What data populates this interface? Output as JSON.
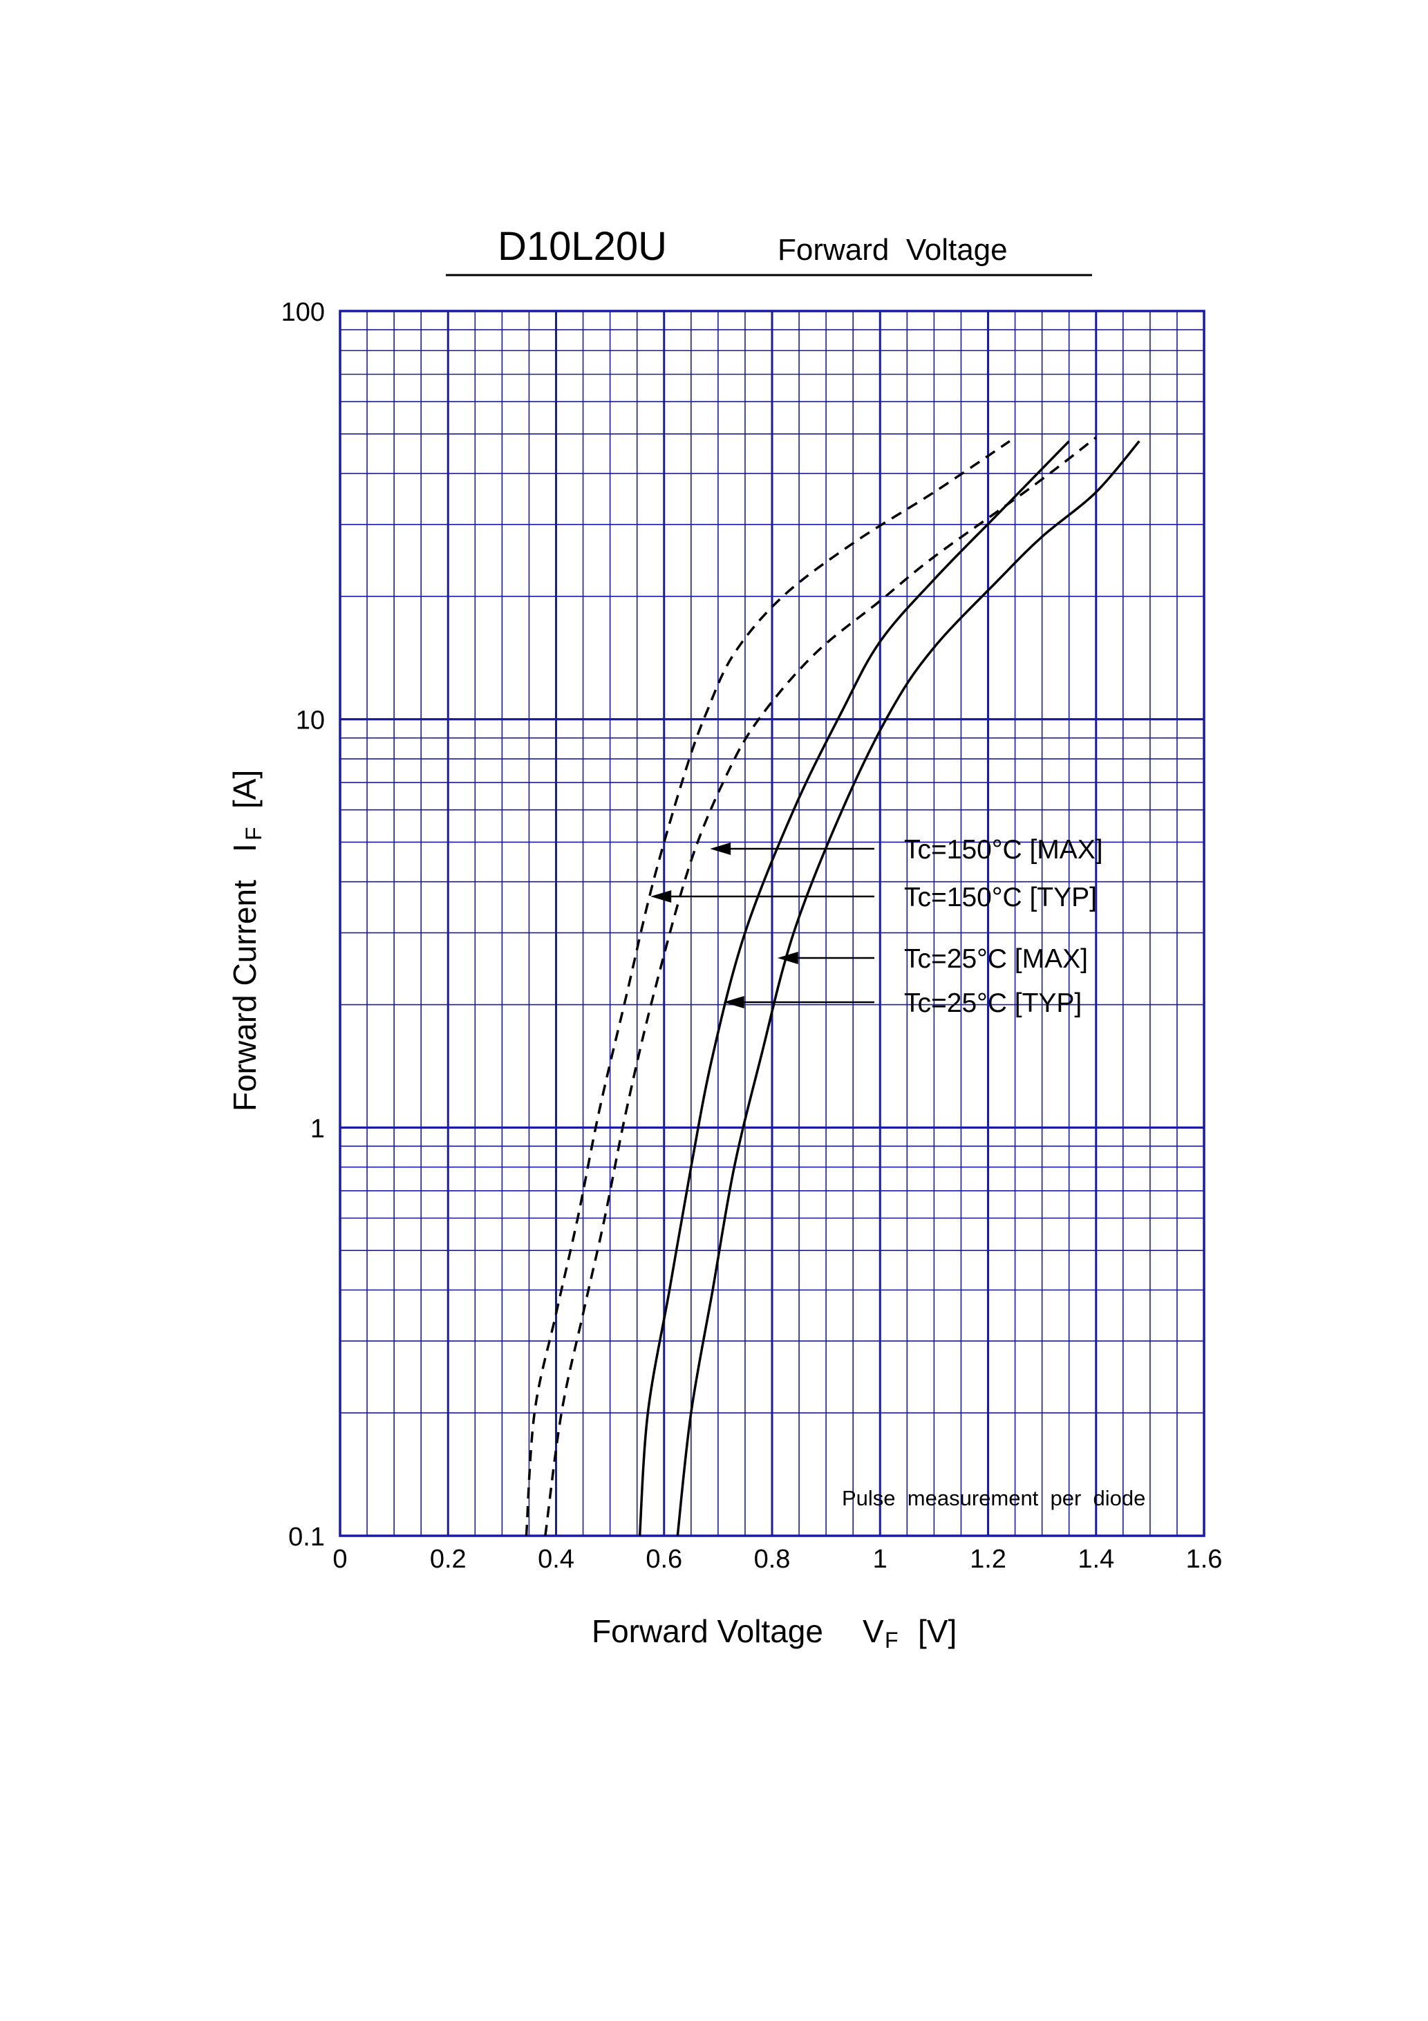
{
  "header": {
    "part_number": "D10L20U",
    "subtitle": "Forward  Voltage"
  },
  "chart_data": {
    "type": "line",
    "title": "D10L20U",
    "subtitle": "Forward  Voltage",
    "xlabel": {
      "main": "Forward Voltage",
      "symbol": "V",
      "subscript": "F",
      "unit": "[V]"
    },
    "ylabel": {
      "main": "Forward Current",
      "symbol": "I",
      "subscript": "F",
      "unit": "[A]"
    },
    "xlim": [
      0,
      1.6
    ],
    "ylim": [
      0.1,
      100
    ],
    "y_scale": "log",
    "grid": true,
    "x_ticks": [
      "0",
      "0.2",
      "0.4",
      "0.6",
      "0.8",
      "1",
      "1.2",
      "1.4",
      "1.6"
    ],
    "y_ticks": [
      "0.1",
      "1",
      "10",
      "100"
    ],
    "note": "Pulse  measurement  per  diode",
    "series": [
      {
        "name": "Tc=150°C [TYP]",
        "style": "dashed",
        "points": [
          [
            0.345,
            0.1
          ],
          [
            0.36,
            0.2
          ],
          [
            0.4,
            0.35
          ],
          [
            0.44,
            0.6
          ],
          [
            0.48,
            1.1
          ],
          [
            0.53,
            2.1
          ],
          [
            0.58,
            4.0
          ],
          [
            0.64,
            7.5
          ],
          [
            0.68,
            10.5
          ],
          [
            0.73,
            14.5
          ],
          [
            0.82,
            20
          ],
          [
            0.95,
            27
          ],
          [
            1.1,
            36
          ],
          [
            1.24,
            48
          ]
        ]
      },
      {
        "name": "Tc=150°C [MAX]",
        "style": "dashed",
        "points": [
          [
            0.38,
            0.1
          ],
          [
            0.41,
            0.2
          ],
          [
            0.45,
            0.35
          ],
          [
            0.49,
            0.6
          ],
          [
            0.53,
            1.1
          ],
          [
            0.58,
            2.1
          ],
          [
            0.65,
            4.5
          ],
          [
            0.72,
            7.5
          ],
          [
            0.78,
            10.2
          ],
          [
            0.88,
            14.5
          ],
          [
            1.0,
            19.5
          ],
          [
            1.1,
            25
          ],
          [
            1.28,
            37
          ],
          [
            1.4,
            49
          ]
        ]
      },
      {
        "name": "Tc=25°C [TYP]",
        "style": "solid",
        "points": [
          [
            0.555,
            0.1
          ],
          [
            0.57,
            0.2
          ],
          [
            0.61,
            0.4
          ],
          [
            0.65,
            0.8
          ],
          [
            0.69,
            1.5
          ],
          [
            0.75,
            3.0
          ],
          [
            0.84,
            6.0
          ],
          [
            0.93,
            10.5
          ],
          [
            1.0,
            15.5
          ],
          [
            1.1,
            22
          ],
          [
            1.22,
            32
          ],
          [
            1.35,
            48
          ]
        ]
      },
      {
        "name": "Tc=25°C [MAX]",
        "style": "solid",
        "points": [
          [
            0.625,
            0.1
          ],
          [
            0.65,
            0.2
          ],
          [
            0.69,
            0.4
          ],
          [
            0.73,
            0.8
          ],
          [
            0.78,
            1.5
          ],
          [
            0.84,
            3.0
          ],
          [
            0.93,
            6.0
          ],
          [
            1.02,
            10.5
          ],
          [
            1.1,
            15
          ],
          [
            1.22,
            22
          ],
          [
            1.3,
            28
          ],
          [
            1.4,
            36
          ],
          [
            1.48,
            48
          ]
        ]
      }
    ],
    "annotations": [
      {
        "text": "Tc=150°C [MAX]",
        "target_series": "Tc=150°C [MAX]",
        "at": [
          0.685,
          4.5
        ]
      },
      {
        "text": "Tc=150°C [TYP]",
        "target_series": "Tc=150°C [TYP]",
        "at": [
          0.575,
          3.5
        ]
      },
      {
        "text": "Tc=25°C [MAX]",
        "target_series": "Tc=25°C [MAX]",
        "at": [
          0.81,
          2.4
        ]
      },
      {
        "text": "Tc=25°C [TYP]",
        "target_series": "Tc=25°C [TYP]",
        "at": [
          0.71,
          1.9
        ]
      }
    ],
    "colors": {
      "grid": "#1a1aa8",
      "curves": "#000000"
    }
  }
}
